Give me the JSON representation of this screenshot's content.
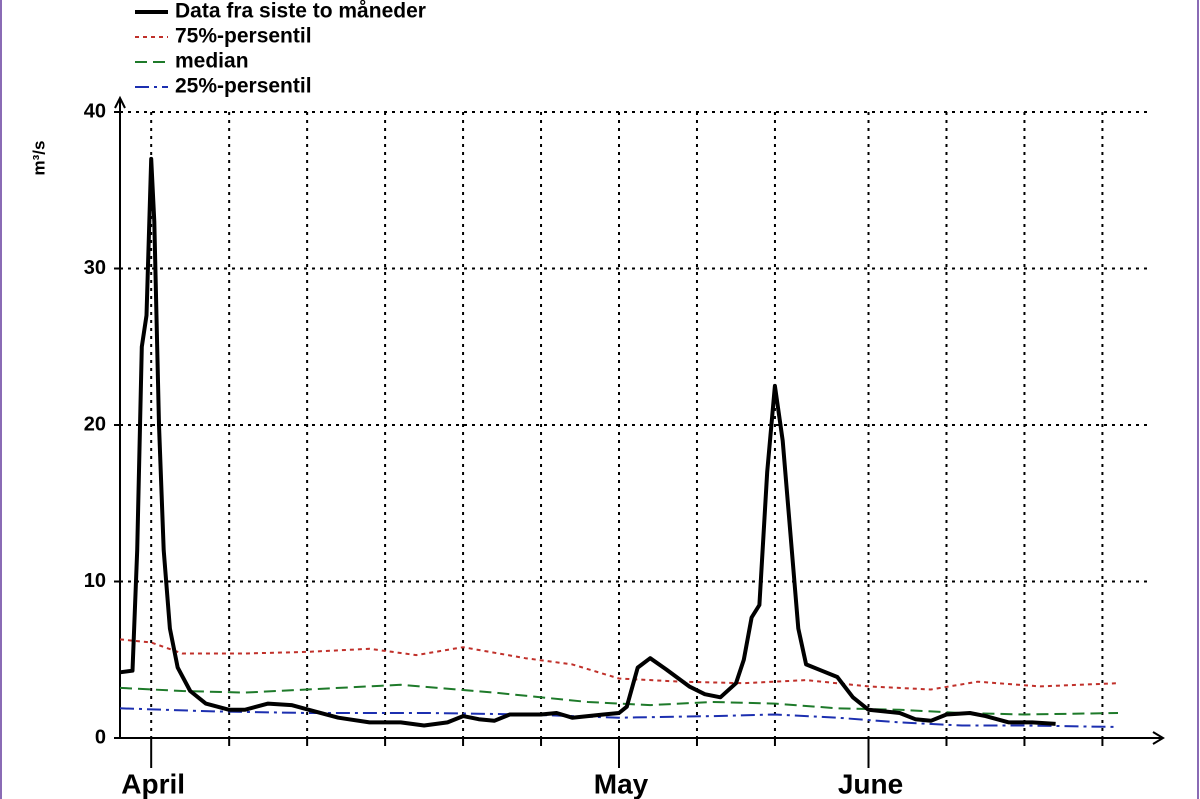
{
  "chart_data": {
    "type": "line",
    "ylabel": "m³/s",
    "xlim": [
      -2,
      64.5
    ],
    "ylim": [
      0,
      40
    ],
    "yticks": [
      0,
      10,
      20,
      30,
      40
    ],
    "xticks": [
      {
        "value": 0,
        "label": "April"
      },
      {
        "value": 30,
        "label": "May"
      },
      {
        "value": 46,
        "label": "June"
      }
    ],
    "xminor": [
      5,
      10,
      15,
      20,
      25,
      35,
      40,
      51,
      56,
      61
    ],
    "grid": true,
    "series": [
      {
        "name": "Data fra siste to måneder",
        "color": "#000000",
        "dash": "solid",
        "x": [
          -2,
          -1.2,
          -0.9,
          -0.6,
          -0.3,
          0,
          0.2,
          0.5,
          0.8,
          1.2,
          1.7,
          2.5,
          3.5,
          5,
          6,
          7.5,
          9,
          10.5,
          12,
          14,
          16,
          17.5,
          19,
          20,
          21,
          22,
          23,
          25,
          26,
          27,
          29,
          30,
          30.5,
          31.2,
          32,
          33,
          34.5,
          35.5,
          36.5,
          37.5,
          38,
          38.5,
          39,
          39.5,
          40,
          40.5,
          41,
          41.5,
          42,
          43,
          44,
          45,
          46,
          47,
          48,
          49,
          50,
          51,
          52.5,
          53.5,
          55,
          56.5,
          58
        ],
        "values": [
          4.2,
          4.3,
          12,
          25,
          27,
          37,
          33,
          20,
          12,
          7,
          4.5,
          3,
          2.2,
          1.8,
          1.8,
          2.2,
          2.1,
          1.7,
          1.3,
          1.0,
          1.0,
          0.8,
          1.0,
          1.4,
          1.2,
          1.1,
          1.5,
          1.5,
          1.6,
          1.3,
          1.5,
          1.6,
          2.0,
          4.5,
          5.1,
          4.4,
          3.3,
          2.8,
          2.6,
          3.5,
          5,
          7.7,
          8.5,
          17,
          22.5,
          19,
          13,
          7,
          4.7,
          4.3,
          3.9,
          2.6,
          1.8,
          1.7,
          1.6,
          1.2,
          1.1,
          1.5,
          1.6,
          1.4,
          1.0,
          1.0,
          0.9
        ]
      },
      {
        "name": "75%-persentil",
        "color": "#c0302a",
        "dash": "dotted",
        "x": [
          -2,
          0,
          2,
          6,
          10,
          14,
          17,
          20,
          24,
          27,
          30,
          34,
          38,
          42,
          46,
          50,
          53,
          57,
          62
        ],
        "values": [
          6.3,
          6.1,
          5.4,
          5.4,
          5.5,
          5.7,
          5.3,
          5.8,
          5.1,
          4.7,
          3.8,
          3.6,
          3.5,
          3.7,
          3.3,
          3.1,
          3.6,
          3.3,
          3.5
        ]
      },
      {
        "name": "median",
        "color": "#1e7a2a",
        "dash": "dashed",
        "x": [
          -2,
          2,
          6,
          10,
          16,
          22,
          28,
          32,
          36,
          40,
          44,
          48,
          52,
          56,
          62
        ],
        "values": [
          3.2,
          3.0,
          2.9,
          3.1,
          3.4,
          2.9,
          2.3,
          2.1,
          2.3,
          2.2,
          1.9,
          1.8,
          1.6,
          1.5,
          1.6
        ]
      },
      {
        "name": "25%-persentil",
        "color": "#1c2fb0",
        "dash": "dashdot",
        "x": [
          -2,
          4,
          10,
          18,
          24,
          30,
          36,
          40,
          44,
          48,
          52,
          56,
          62
        ],
        "values": [
          1.9,
          1.7,
          1.6,
          1.6,
          1.5,
          1.3,
          1.4,
          1.5,
          1.3,
          1.0,
          0.8,
          0.8,
          0.7
        ]
      }
    ]
  }
}
